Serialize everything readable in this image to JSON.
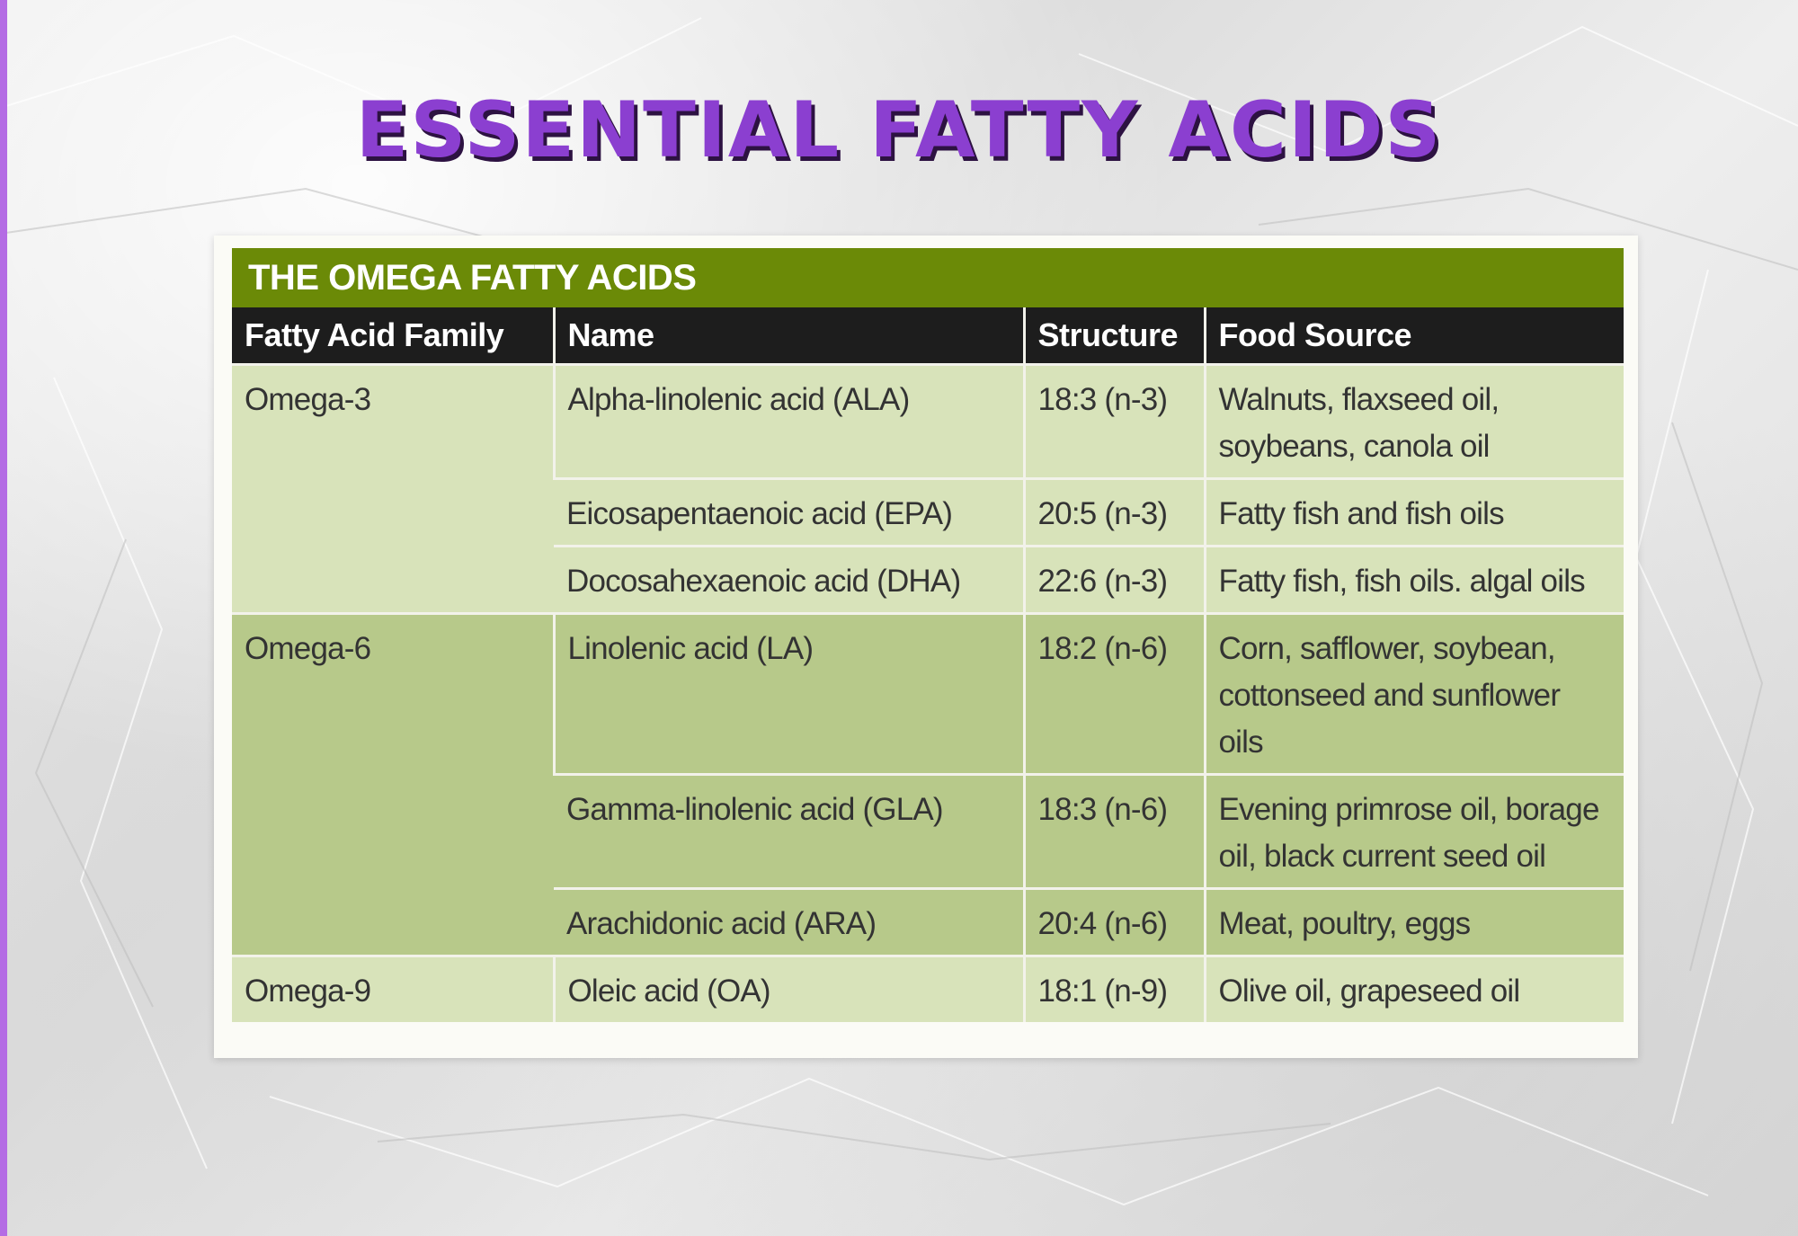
{
  "title": "ESSENTIAL FATTY ACIDS",
  "table": {
    "caption": "THE OMEGA FATTY ACIDS",
    "headers": {
      "family": "Fatty Acid Family",
      "name": "Name",
      "structure": "Structure",
      "food": "Food Source"
    },
    "groups": [
      {
        "family": "Omega-3",
        "rows": [
          {
            "name": "Alpha-linolenic acid (ALA)",
            "structure": "18:3 (n-3)",
            "food": "Walnuts, flaxseed oil, soybeans, canola oil"
          },
          {
            "name": "Eicosapentaenoic acid (EPA)",
            "structure": "20:5 (n-3)",
            "food": "Fatty fish and fish oils"
          },
          {
            "name": "Docosahexaenoic acid (DHA)",
            "structure": "22:6 (n-3)",
            "food": "Fatty fish, fish oils. algal oils"
          }
        ]
      },
      {
        "family": "Omega-6",
        "rows": [
          {
            "name": "Linolenic acid (LA)",
            "structure": "18:2 (n-6)",
            "food": "Corn, safflower, soybean, cottonseed and sunflower oils"
          },
          {
            "name": "Gamma-linolenic acid (GLA)",
            "structure": "18:3 (n-6)",
            "food": "Evening primrose oil, borage oil, black current seed oil"
          },
          {
            "name": "Arachidonic acid (ARA)",
            "structure": "20:4 (n-6)",
            "food": "Meat, poultry, eggs"
          }
        ]
      },
      {
        "family": "Omega-9",
        "rows": [
          {
            "name": "Oleic acid (OA)",
            "structure": "18:1 (n-9)",
            "food": "Olive oil, grapeseed oil"
          }
        ]
      }
    ]
  },
  "colors": {
    "title": "#8b3fd0",
    "title_shadow": "#2d1242",
    "caption_bg": "#6b8a07",
    "header_bg": "#1d1d1d",
    "row_light": "#d8e3ba",
    "row_dark": "#b7c98a",
    "accent_stripe": "#b46ce4"
  }
}
